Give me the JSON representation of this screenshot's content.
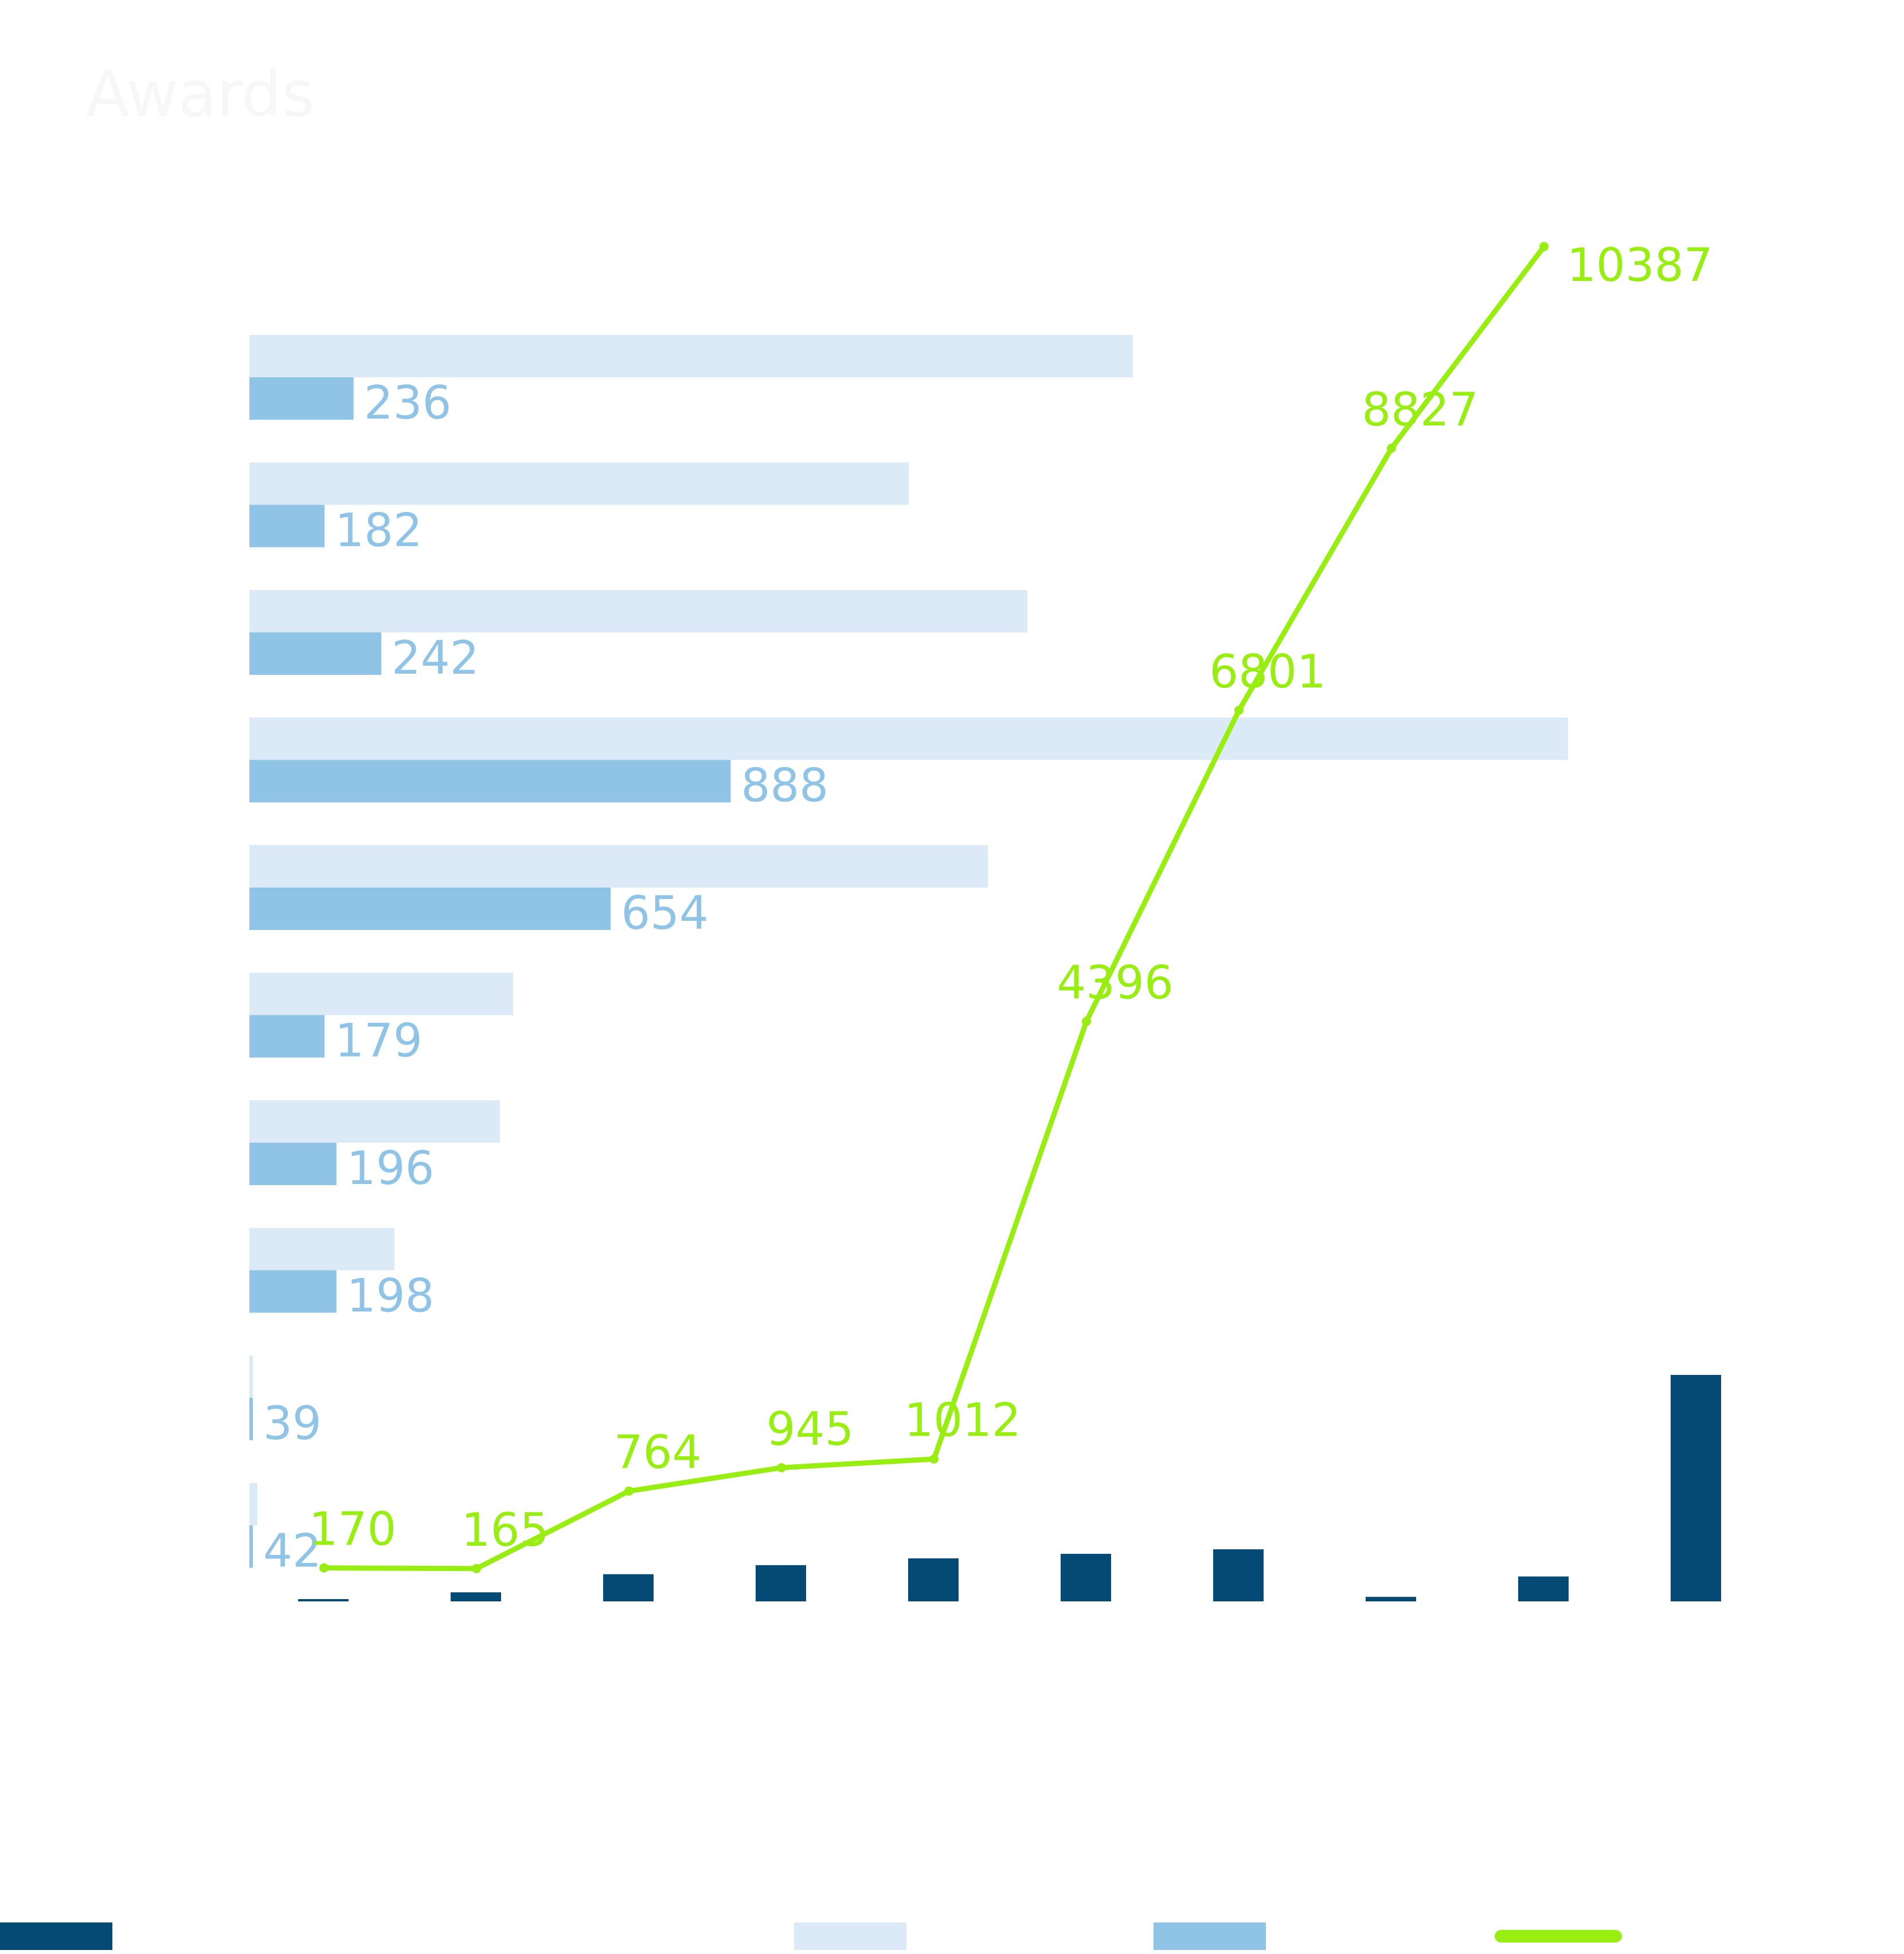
{
  "title": "Awards",
  "colors": {
    "columns": "#054a75",
    "bar_light": "#dbeaf6",
    "bar_mid": "#8fc4e7",
    "line": "#99ee11",
    "faint_text": "#f3f3f3"
  },
  "chart_data": {
    "type": "bar",
    "title": "Awards",
    "horizontal_bars": {
      "orientation": "horizontal",
      "secondary_label_values": [
        236,
        182,
        242,
        888,
        654,
        179,
        196,
        198,
        39,
        42
      ],
      "primary_bar_relative_lengths": [
        0.67,
        0.5,
        0.59,
        1.0,
        0.56,
        0.2,
        0.19,
        0.11,
        0.002,
        0.006
      ],
      "secondary_bar_relative_lengths": [
        0.079,
        0.057,
        0.1,
        0.365,
        0.274,
        0.057,
        0.066,
        0.066,
        0.002,
        0.002
      ]
    },
    "line": {
      "values": [
        170,
        165,
        764,
        945,
        1012,
        4396,
        6801,
        8827,
        10387
      ],
      "ylim": [
        0,
        10387
      ]
    },
    "columns": {
      "relative_heights": [
        0.004,
        0.04,
        0.12,
        0.16,
        0.19,
        0.21,
        0.23,
        0.02,
        0.11,
        1.0
      ]
    },
    "legend_placement": "bottom",
    "grid": false
  }
}
